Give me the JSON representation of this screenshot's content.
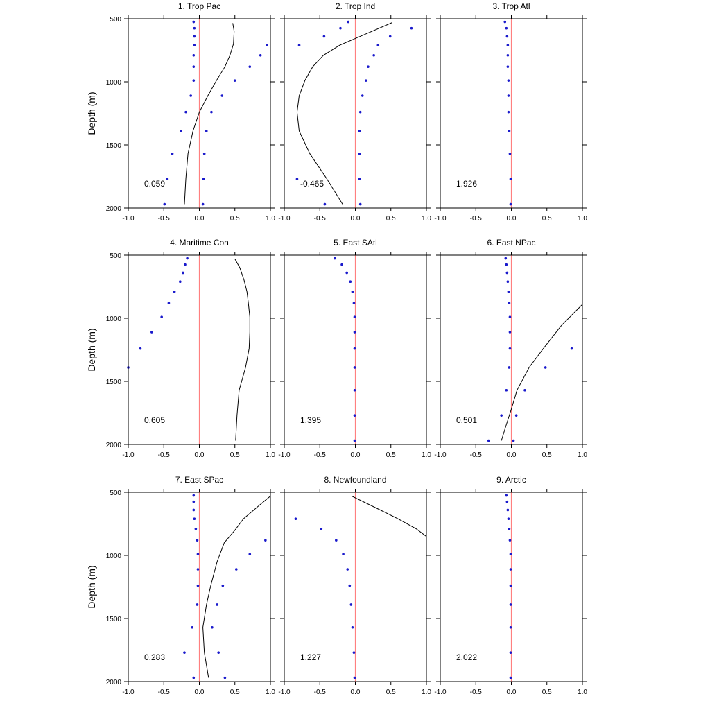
{
  "chart_data": {
    "type": "scatter",
    "ylabel": "Depth (m)",
    "xlim": [
      -1.0,
      1.0
    ],
    "ylim": [
      500,
      2000
    ],
    "x_ticks": [
      "-1.0",
      "-0.5",
      "0.0",
      "0.5",
      "1.0"
    ],
    "y_ticks": [
      "500",
      "1000",
      "1500",
      "2000"
    ],
    "colors": {
      "points": "#1a1acc",
      "zero_line": "#ff8080",
      "curve": "#000000"
    },
    "depths": [
      525,
      575,
      640,
      710,
      790,
      880,
      990,
      1110,
      1240,
      1390,
      1570,
      1770,
      1970
    ],
    "panels": [
      {
        "title": "1. Trop Pac",
        "value": "0.059",
        "points_a": [
          -0.08,
          -0.07,
          -0.07,
          -0.07,
          -0.08,
          -0.08,
          -0.08,
          -0.12,
          -0.19,
          -0.26,
          -0.38,
          -0.45,
          -0.49
        ],
        "points_b": [
          null,
          null,
          null,
          0.95,
          0.86,
          0.71,
          0.5,
          0.32,
          0.17,
          0.1,
          0.07,
          0.06,
          0.05
        ],
        "curve": [
          [
            0.47,
            535
          ],
          [
            0.49,
            600
          ],
          [
            0.48,
            700
          ],
          [
            0.43,
            790
          ],
          [
            0.36,
            880
          ],
          [
            0.24,
            990
          ],
          [
            0.12,
            1110
          ],
          [
            0.0,
            1240
          ],
          [
            -0.09,
            1390
          ],
          [
            -0.16,
            1570
          ],
          [
            -0.19,
            1770
          ],
          [
            -0.21,
            1970
          ]
        ]
      },
      {
        "title": "2. Trop Ind",
        "value": "-0.465",
        "points_a": [
          -0.1,
          -0.21,
          -0.44,
          -0.79,
          null,
          null,
          null,
          null,
          null,
          null,
          null,
          -0.82,
          -0.43
        ],
        "points_b": [
          null,
          0.79,
          0.49,
          0.32,
          0.26,
          0.18,
          0.15,
          0.1,
          0.07,
          0.06,
          0.06,
          0.06,
          0.07
        ],
        "curve": [
          [
            0.52,
            530
          ],
          [
            0.15,
            620
          ],
          [
            -0.22,
            710
          ],
          [
            -0.45,
            790
          ],
          [
            -0.6,
            880
          ],
          [
            -0.71,
            990
          ],
          [
            -0.79,
            1110
          ],
          [
            -0.82,
            1240
          ],
          [
            -0.79,
            1390
          ],
          [
            -0.64,
            1570
          ],
          [
            -0.4,
            1770
          ],
          [
            -0.18,
            1970
          ]
        ]
      },
      {
        "title": "3. Trop Atl",
        "value": "1.926",
        "points_a": [
          -0.09,
          -0.07,
          -0.06,
          -0.05,
          -0.05,
          -0.05,
          -0.04,
          -0.04,
          -0.04,
          -0.03,
          -0.02,
          -0.01,
          -0.01
        ],
        "points_b": [],
        "curve": []
      },
      {
        "title": "4. Maritime Con",
        "value": "0.605",
        "points_a": [
          -0.17,
          -0.2,
          -0.23,
          -0.27,
          -0.35,
          -0.43,
          -0.53,
          -0.67,
          -0.83,
          -1.0,
          null,
          null,
          null
        ],
        "points_b": [],
        "curve": [
          [
            0.5,
            530
          ],
          [
            0.57,
            600
          ],
          [
            0.63,
            700
          ],
          [
            0.67,
            790
          ],
          [
            0.69,
            880
          ],
          [
            0.71,
            990
          ],
          [
            0.71,
            1110
          ],
          [
            0.7,
            1240
          ],
          [
            0.65,
            1390
          ],
          [
            0.56,
            1570
          ],
          [
            0.53,
            1770
          ],
          [
            0.51,
            1970
          ]
        ]
      },
      {
        "title": "5. East SAtl",
        "value": "1.395",
        "points_a": [
          -0.29,
          -0.19,
          -0.12,
          -0.07,
          -0.04,
          -0.02,
          -0.01,
          -0.01,
          -0.01,
          -0.01,
          -0.01,
          -0.01,
          -0.01
        ],
        "points_b": [],
        "curve": []
      },
      {
        "title": "6. East NPac",
        "value": "0.501",
        "points_a": [
          -0.08,
          -0.07,
          -0.06,
          -0.05,
          -0.04,
          -0.03,
          -0.02,
          -0.02,
          -0.02,
          -0.03,
          -0.07,
          -0.14,
          -0.32
        ],
        "points_b": [
          null,
          null,
          null,
          null,
          null,
          null,
          null,
          null,
          0.85,
          0.48,
          0.19,
          0.07,
          0.03
        ],
        "curve": [
          [
            1.0,
            890
          ],
          [
            0.7,
            1060
          ],
          [
            0.45,
            1240
          ],
          [
            0.25,
            1390
          ],
          [
            0.08,
            1570
          ],
          [
            0.0,
            1720
          ],
          [
            -0.08,
            1860
          ],
          [
            -0.14,
            1970
          ]
        ]
      },
      {
        "title": "7. East SPac",
        "value": "0.283",
        "points_a": [
          -0.08,
          -0.08,
          -0.08,
          -0.07,
          -0.05,
          -0.03,
          -0.02,
          -0.02,
          -0.02,
          -0.03,
          -0.1,
          -0.21,
          -0.08
        ],
        "points_b": [
          null,
          null,
          null,
          null,
          null,
          0.93,
          0.71,
          0.52,
          0.33,
          0.25,
          0.18,
          0.27,
          0.36
        ],
        "curve": [
          [
            1.0,
            530
          ],
          [
            0.85,
            600
          ],
          [
            0.62,
            710
          ],
          [
            0.5,
            800
          ],
          [
            0.35,
            900
          ],
          [
            0.25,
            1050
          ],
          [
            0.16,
            1240
          ],
          [
            0.1,
            1390
          ],
          [
            0.05,
            1570
          ],
          [
            0.07,
            1770
          ],
          [
            0.13,
            1970
          ]
        ]
      },
      {
        "title": "8. Newfoundland",
        "value": "1.227",
        "points_a": [
          null,
          null,
          null,
          -0.84,
          -0.48,
          -0.27,
          -0.17,
          -0.11,
          -0.08,
          -0.06,
          -0.04,
          -0.02,
          -0.01
        ],
        "points_b": [],
        "curve": [
          [
            -0.05,
            530
          ],
          [
            0.35,
            640
          ],
          [
            0.6,
            710
          ],
          [
            0.86,
            790
          ],
          [
            1.0,
            850
          ]
        ]
      },
      {
        "title": "9. Arctic",
        "value": "2.022",
        "points_a": [
          -0.07,
          -0.06,
          -0.05,
          -0.04,
          -0.03,
          -0.02,
          -0.01,
          -0.01,
          -0.01,
          -0.01,
          -0.01,
          -0.01,
          -0.01
        ],
        "points_b": [],
        "curve": []
      }
    ]
  }
}
